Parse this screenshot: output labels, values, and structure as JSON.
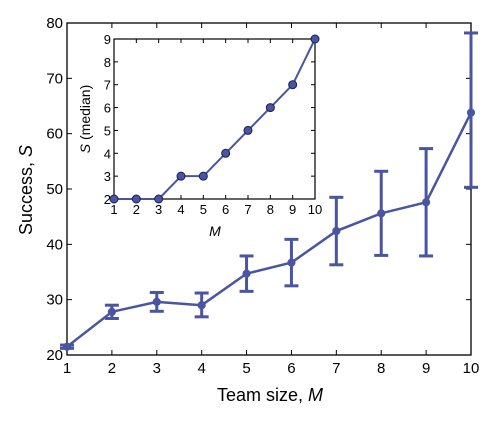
{
  "chart_data": [
    {
      "type": "line",
      "role": "main",
      "xlabel": "Team size, ",
      "xlabel_var": "M",
      "ylabel": "Success, ",
      "ylabel_var": "S",
      "xlim": [
        1,
        10
      ],
      "ylim": [
        20,
        80
      ],
      "xticks": [
        1,
        2,
        3,
        4,
        5,
        6,
        7,
        8,
        9,
        10
      ],
      "yticks": [
        20,
        30,
        40,
        50,
        60,
        70,
        80
      ],
      "grid": false,
      "series": [
        {
          "color": "#4a55a2",
          "x": [
            1,
            2,
            3,
            4,
            5,
            6,
            7,
            8,
            9,
            10
          ],
          "y": [
            21.5,
            27.8,
            29.6,
            29.0,
            34.7,
            36.7,
            42.4,
            45.6,
            47.6,
            63.8
          ],
          "err_low": [
            21.2,
            26.6,
            27.9,
            26.9,
            31.5,
            32.5,
            36.3,
            38.0,
            37.9,
            50.3
          ],
          "err_high": [
            21.8,
            29.0,
            31.3,
            31.2,
            37.9,
            40.9,
            48.5,
            53.2,
            57.3,
            78.2
          ]
        }
      ]
    },
    {
      "type": "line",
      "role": "inset",
      "xlabel": "M",
      "ylabel_var": "S",
      "ylabel": " (median)",
      "xlim": [
        1,
        10
      ],
      "ylim": [
        2,
        9
      ],
      "xticks": [
        1,
        2,
        3,
        4,
        5,
        6,
        7,
        8,
        9,
        10
      ],
      "yticks": [
        2,
        3,
        4,
        5,
        6,
        7,
        8,
        9
      ],
      "grid": false,
      "series": [
        {
          "color": "#4a55a2",
          "x": [
            1,
            2,
            3,
            4,
            5,
            6,
            7,
            8,
            9,
            10
          ],
          "y": [
            2,
            2,
            2,
            3,
            3,
            4,
            5,
            6,
            7,
            9
          ]
        }
      ]
    }
  ]
}
